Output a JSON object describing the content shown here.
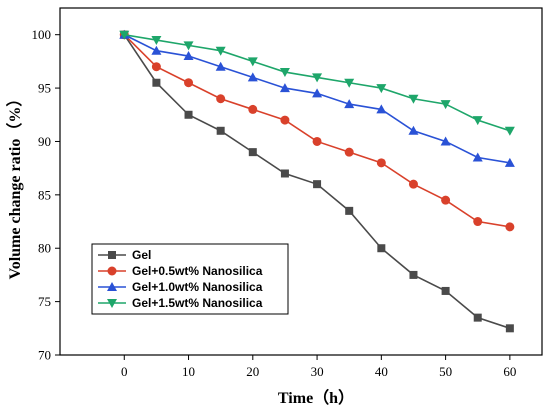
{
  "chart_data": {
    "type": "line",
    "xlabel": "Time（h）",
    "ylabel": "Volume change ratio（%）",
    "xlim": [
      -10,
      65
    ],
    "ylim": [
      70,
      102.5
    ],
    "xticks": [
      0,
      10,
      20,
      30,
      40,
      50,
      60
    ],
    "yticks": [
      70,
      75,
      80,
      85,
      90,
      95,
      100
    ],
    "grid": false,
    "legend_position": "bottom-left",
    "x": [
      0,
      5,
      10,
      15,
      20,
      25,
      30,
      35,
      40,
      45,
      50,
      55,
      60
    ],
    "series": [
      {
        "name": "Gel",
        "color": "#4a4a4a",
        "marker": "square",
        "values": [
          100,
          95.5,
          92.5,
          91,
          89,
          87,
          86,
          83.5,
          80,
          77.5,
          76,
          73.5,
          72.5
        ]
      },
      {
        "name": "Gel+0.5wt% Nanosilica",
        "color": "#d9412b",
        "marker": "circle",
        "values": [
          100,
          97,
          95.5,
          94,
          93,
          92,
          90,
          89,
          88,
          86,
          84.5,
          82.5,
          82
        ]
      },
      {
        "name": "Gel+1.0wt% Nanosilica",
        "color": "#2a52d6",
        "marker": "triangle-up",
        "values": [
          100,
          98.5,
          98,
          97,
          96,
          95,
          94.5,
          93.5,
          93,
          91,
          90,
          88.5,
          88
        ]
      },
      {
        "name": "Gel+1.5wt% Nanosilica",
        "color": "#1ea66a",
        "marker": "triangle-down",
        "values": [
          100,
          99.5,
          99,
          98.5,
          97.5,
          96.5,
          96,
          95.5,
          95,
          94,
          93.5,
          92,
          91
        ]
      }
    ]
  }
}
